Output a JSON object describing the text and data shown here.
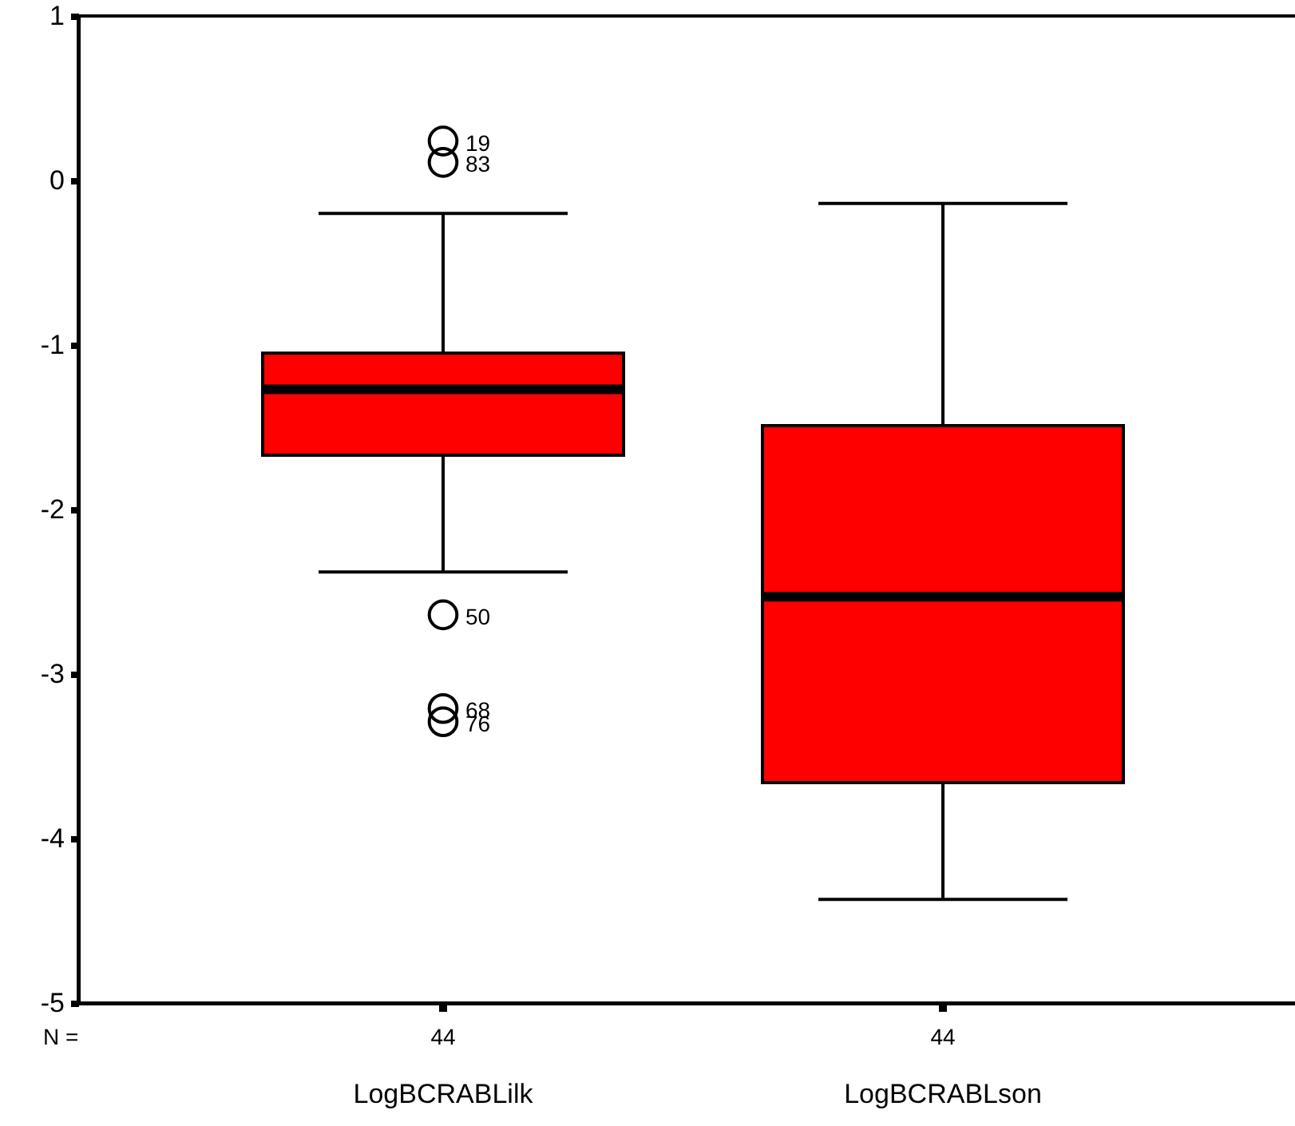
{
  "chart_data": {
    "type": "box",
    "categories": [
      "LogBCRABLilk",
      "LogBCRABLson"
    ],
    "color": "#ff0000",
    "boxes": [
      {
        "low": -2.38,
        "q1": -1.67,
        "median": -1.27,
        "q3": -1.05,
        "high": -0.2,
        "outliers": [
          0.24,
          0.11,
          -2.64,
          -3.21,
          -3.29
        ]
      },
      {
        "low": -4.37,
        "q1": -3.66,
        "median": -2.53,
        "q3": -1.49,
        "high": -0.14
      }
    ],
    "ylim": [
      -5,
      1
    ],
    "yticks": [
      -5,
      -4,
      -3,
      -2,
      -1,
      0,
      1
    ],
    "grid": false,
    "annotations": [
      "19",
      "83",
      "50",
      "68",
      "76",
      "N =",
      {
        "text": "44",
        "x": "LogBCRABLilk"
      },
      {
        "text": "44",
        "x": "LogBCRABLson"
      }
    ]
  }
}
